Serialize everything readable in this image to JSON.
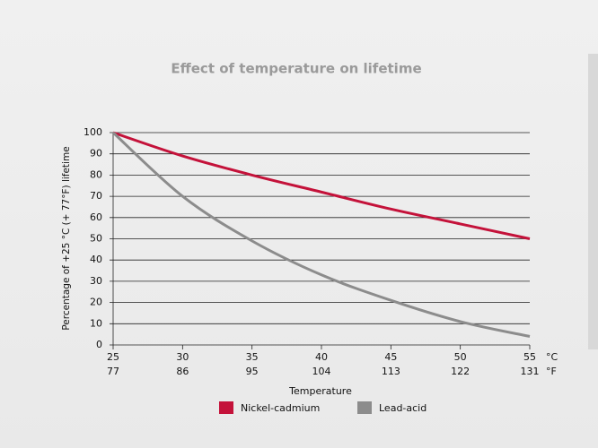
{
  "chart_data": {
    "type": "line",
    "title": "Effect of temperature on lifetime",
    "y_label": "Percentage of +25 °C (+ 77°F) lifetime",
    "x_label": "Temperature",
    "x_unit": "°C",
    "x2_unit": "°F",
    "x": [
      25,
      30,
      35,
      40,
      45,
      50,
      55
    ],
    "xlim": [
      25,
      55
    ],
    "xticks": [
      25,
      30,
      35,
      40,
      45,
      50,
      55
    ],
    "x2ticks": [
      77,
      86,
      95,
      104,
      113,
      122,
      131
    ],
    "ylim": [
      0,
      100
    ],
    "yticks": [
      0,
      10,
      20,
      30,
      40,
      50,
      60,
      70,
      80,
      90,
      100
    ],
    "grid": true,
    "series": [
      {
        "name": "Nickel-cadmium",
        "color": "#c4123a",
        "values": [
          100,
          89,
          80,
          72,
          64,
          57,
          50
        ]
      },
      {
        "name": "Lead-acid",
        "color": "#8c8c8c",
        "values": [
          100,
          70,
          49,
          33,
          21,
          11,
          4
        ]
      }
    ]
  }
}
